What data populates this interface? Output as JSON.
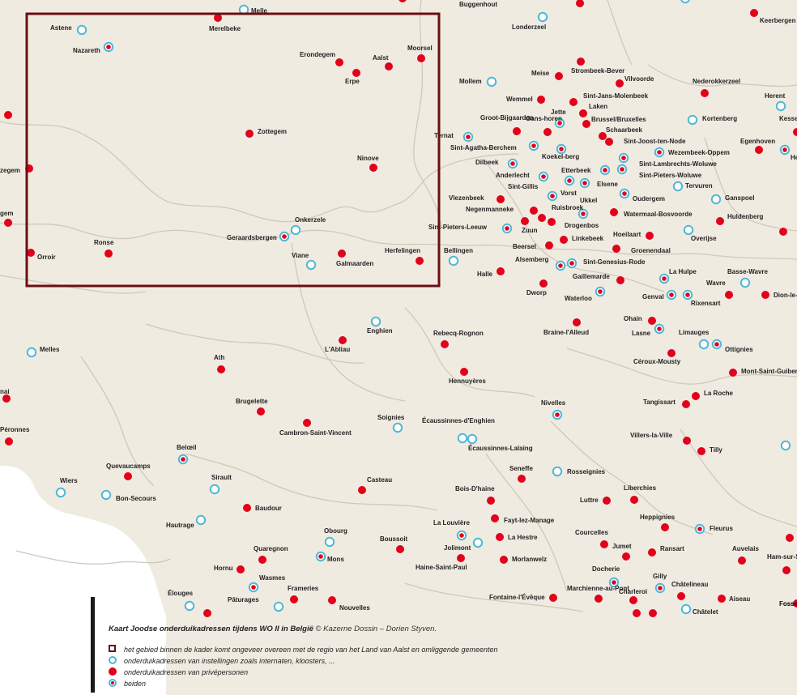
{
  "map": {
    "colors": {
      "land": "#f0ebe1",
      "sea": "#ffffff",
      "border": "#cfc8bb",
      "private": "#e3001b",
      "institution": "#4db8d8",
      "frame": "#6b0f12"
    },
    "places": [
      {
        "name": "Melle",
        "kind": "institution"
      },
      {
        "name": "Buggenhout",
        "kind": "private"
      },
      {
        "name": "Keerbergen",
        "kind": "private"
      },
      {
        "name": "Astene",
        "kind": "institution"
      },
      {
        "name": "Merelbeke",
        "kind": "private"
      },
      {
        "name": "Londerzeel",
        "kind": "institution"
      },
      {
        "name": "Nazareth",
        "kind": "both"
      },
      {
        "name": "Moorsel",
        "kind": "private"
      },
      {
        "name": "Erondegem",
        "kind": "private"
      },
      {
        "name": "Aalst",
        "kind": "private"
      },
      {
        "name": "Erpe",
        "kind": "private"
      },
      {
        "name": "Meise",
        "kind": "private"
      },
      {
        "name": "Strombeek-Bever",
        "kind": "private"
      },
      {
        "name": "Mollem",
        "kind": "institution"
      },
      {
        "name": "Vilvoorde",
        "kind": "private"
      },
      {
        "name": "Nederokkerzeel",
        "kind": "private"
      },
      {
        "name": "Wemmel",
        "kind": "private"
      },
      {
        "name": "Sint-Jans-Molenbeek",
        "kind": "private"
      },
      {
        "name": "Herent",
        "kind": "institution"
      },
      {
        "name": "Laken",
        "kind": "private"
      },
      {
        "name": "Groot-Bijgaarden",
        "kind": "private"
      },
      {
        "name": "Jette",
        "kind": "both"
      },
      {
        "name": "Brussel/Bruxelles",
        "kind": "private"
      },
      {
        "name": "Kortenberg",
        "kind": "institution"
      },
      {
        "name": "Gans-horen",
        "kind": "private"
      },
      {
        "name": "Schaarbeek",
        "kind": "private"
      },
      {
        "name": "Zottegem",
        "kind": "private"
      },
      {
        "name": "Ternat",
        "kind": "both"
      },
      {
        "name": "Sint-Joost-ten-Node",
        "kind": "private"
      },
      {
        "name": "Egenhoven",
        "kind": "private"
      },
      {
        "name": "Sint-Agatha-Berchem",
        "kind": "both"
      },
      {
        "name": "Wezembeek-Oppem",
        "kind": "both"
      },
      {
        "name": "Koekel-berg",
        "kind": "both"
      },
      {
        "name": "Ninove",
        "kind": "private"
      },
      {
        "name": "Dilbeek",
        "kind": "both"
      },
      {
        "name": "Sint-Lambrechts-Woluwe",
        "kind": "both"
      },
      {
        "name": "Etterbeek",
        "kind": "both"
      },
      {
        "name": "Sint-Pieters-Woluwe",
        "kind": "both"
      },
      {
        "name": "Anderlecht",
        "kind": "both"
      },
      {
        "name": "Tervuren",
        "kind": "institution"
      },
      {
        "name": "Sint-Gillis",
        "kind": "both"
      },
      {
        "name": "Elsene",
        "kind": "both"
      },
      {
        "name": "Vorst",
        "kind": "both"
      },
      {
        "name": "Oudergem",
        "kind": "both"
      },
      {
        "name": "Ganspoel",
        "kind": "institution"
      },
      {
        "name": "Vlezenbeek",
        "kind": "private"
      },
      {
        "name": "Ukkel",
        "kind": "both"
      },
      {
        "name": "Negenmanneke",
        "kind": "private"
      },
      {
        "name": "Ruisbroek",
        "kind": "private"
      },
      {
        "name": "Watermaal-Bosvoorde",
        "kind": "private"
      },
      {
        "name": "Huldenberg",
        "kind": "private"
      },
      {
        "name": "Onkerzele",
        "kind": "institution"
      },
      {
        "name": "Sint-Pieters-Leeuw",
        "kind": "both"
      },
      {
        "name": "Zuun",
        "kind": "private"
      },
      {
        "name": "Drogenbos",
        "kind": "private"
      },
      {
        "name": "Linkebeek",
        "kind": "private"
      },
      {
        "name": "Hoeilaart",
        "kind": "private"
      },
      {
        "name": "Overijse",
        "kind": "institution"
      },
      {
        "name": "Geraardsbergen",
        "kind": "both"
      },
      {
        "name": "Ronse",
        "kind": "private"
      },
      {
        "name": "Orroir",
        "kind": "private"
      },
      {
        "name": "Beersel",
        "kind": "private"
      },
      {
        "name": "Groenendaal",
        "kind": "private"
      },
      {
        "name": "Bellingen",
        "kind": "institution"
      },
      {
        "name": "Herfelingen",
        "kind": "private"
      },
      {
        "name": "Viane",
        "kind": "institution"
      },
      {
        "name": "Galmaarden",
        "kind": "private"
      },
      {
        "name": "Alsemberg",
        "kind": "both"
      },
      {
        "name": "Sint-Genesius-Rode",
        "kind": "both"
      },
      {
        "name": "La Hulpe",
        "kind": "both"
      },
      {
        "name": "Basse-Wavre",
        "kind": "institution"
      },
      {
        "name": "Halle",
        "kind": "private"
      },
      {
        "name": "Gaillemarde",
        "kind": "private"
      },
      {
        "name": "Wavre",
        "kind": "private"
      },
      {
        "name": "Dworp",
        "kind": "private"
      },
      {
        "name": "Waterloo",
        "kind": "both"
      },
      {
        "name": "Genval",
        "kind": "both"
      },
      {
        "name": "Rixensart",
        "kind": "both"
      },
      {
        "name": "Dion-le-Val",
        "kind": "private"
      },
      {
        "name": "Ohain",
        "kind": "private"
      },
      {
        "name": "Enghien",
        "kind": "institution"
      },
      {
        "name": "Rebecq-Rognon",
        "kind": "private"
      },
      {
        "name": "Braine-l'Alleud",
        "kind": "private"
      },
      {
        "name": "Lasne",
        "kind": "both"
      },
      {
        "name": "Limauges",
        "kind": "institution"
      },
      {
        "name": "Melles",
        "kind": "institution"
      },
      {
        "name": "L'Abliau",
        "kind": "private"
      },
      {
        "name": "Ottignies",
        "kind": "both"
      },
      {
        "name": "Ath",
        "kind": "private"
      },
      {
        "name": "Céroux-Mousty",
        "kind": "private"
      },
      {
        "name": "Mont-Saint-Guibert",
        "kind": "private"
      },
      {
        "name": "Hennuyères",
        "kind": "private"
      },
      {
        "name": "Tangissart",
        "kind": "private"
      },
      {
        "name": "La Roche",
        "kind": "private"
      },
      {
        "name": "Brugelette",
        "kind": "private"
      },
      {
        "name": "Nivelles",
        "kind": "both"
      },
      {
        "name": "Soignies",
        "kind": "institution"
      },
      {
        "name": "Écaussinnes-d'Enghien",
        "kind": "institution"
      },
      {
        "name": "Cambron-Saint-Vincent",
        "kind": "private"
      },
      {
        "name": "Villers-la-Ville",
        "kind": "private"
      },
      {
        "name": "Péronnes",
        "kind": "private"
      },
      {
        "name": "Écaussinnes-Lalaing",
        "kind": "institution"
      },
      {
        "name": "Tilly",
        "kind": "private"
      },
      {
        "name": "Belœil",
        "kind": "both"
      },
      {
        "name": "Quevaucamps",
        "kind": "private"
      },
      {
        "name": "Seneffe",
        "kind": "private"
      },
      {
        "name": "Rosseignies",
        "kind": "institution"
      },
      {
        "name": "Wiers",
        "kind": "institution"
      },
      {
        "name": "Sirault",
        "kind": "institution"
      },
      {
        "name": "Casteau",
        "kind": "private"
      },
      {
        "name": "Bon-Secours",
        "kind": "institution"
      },
      {
        "name": "Bois-D'haine",
        "kind": "private"
      },
      {
        "name": "Luttre",
        "kind": "private"
      },
      {
        "name": "Liberchies",
        "kind": "private"
      },
      {
        "name": "Baudour",
        "kind": "private"
      },
      {
        "name": "Fayt-lez-Manage",
        "kind": "private"
      },
      {
        "name": "Heppignies",
        "kind": "private"
      },
      {
        "name": "Hautrage",
        "kind": "institution"
      },
      {
        "name": "La Louvière",
        "kind": "both"
      },
      {
        "name": "Fleurus",
        "kind": "both"
      },
      {
        "name": "Obourg",
        "kind": "institution"
      },
      {
        "name": "La Hestre",
        "kind": "private"
      },
      {
        "name": "Courcelles",
        "kind": "private"
      },
      {
        "name": "Boussoit",
        "kind": "private"
      },
      {
        "name": "Quaregnon",
        "kind": "private"
      },
      {
        "name": "Jolimont",
        "kind": "institution"
      },
      {
        "name": "Jumet",
        "kind": "private"
      },
      {
        "name": "Ransart",
        "kind": "private"
      },
      {
        "name": "Auvelais",
        "kind": "private"
      },
      {
        "name": "Mons",
        "kind": "both"
      },
      {
        "name": "Morlanwelz",
        "kind": "private"
      },
      {
        "name": "Ham-sur-Sambre",
        "kind": "private"
      },
      {
        "name": "Hornu",
        "kind": "private"
      },
      {
        "name": "Haine-Saint-Paul",
        "kind": "private"
      },
      {
        "name": "Docherie",
        "kind": "both"
      },
      {
        "name": "Wasmes",
        "kind": "both"
      },
      {
        "name": "Gilly",
        "kind": "both"
      },
      {
        "name": "Châtelineau",
        "kind": "private"
      },
      {
        "name": "Frameries",
        "kind": "private"
      },
      {
        "name": "Marchienne-au-Pont",
        "kind": "private"
      },
      {
        "name": "Charleroi",
        "kind": "private"
      },
      {
        "name": "Élouges",
        "kind": "institution"
      },
      {
        "name": "Pâturages",
        "kind": "institution"
      },
      {
        "name": "Fontaine-l'Évêque",
        "kind": "private"
      },
      {
        "name": "Aiseau",
        "kind": "private"
      },
      {
        "name": "Nouvelles",
        "kind": "private"
      },
      {
        "name": "Châtelet",
        "kind": "institution"
      },
      {
        "name": "Fosses",
        "kind": "private"
      }
    ],
    "edge_labels": [
      "zegem",
      "gem",
      "nai",
      "Kesse",
      "He",
      "Fosse"
    ]
  },
  "legend": {
    "title": "Kaart Joodse onderduikadressen tijdens WO II in België",
    "credit": "© Kazerne Dossin – Dorien Styven.",
    "items": {
      "frame": "het gebied binnen de kader komt ongeveer overeen met de regio van het Land van Aalst en omliggende gemeenten",
      "institution": "onderduikadressen van instellingen zoals internaten, kloosters, ...",
      "private": "onderduikadressen van privépersonen",
      "both": "beiden"
    }
  }
}
